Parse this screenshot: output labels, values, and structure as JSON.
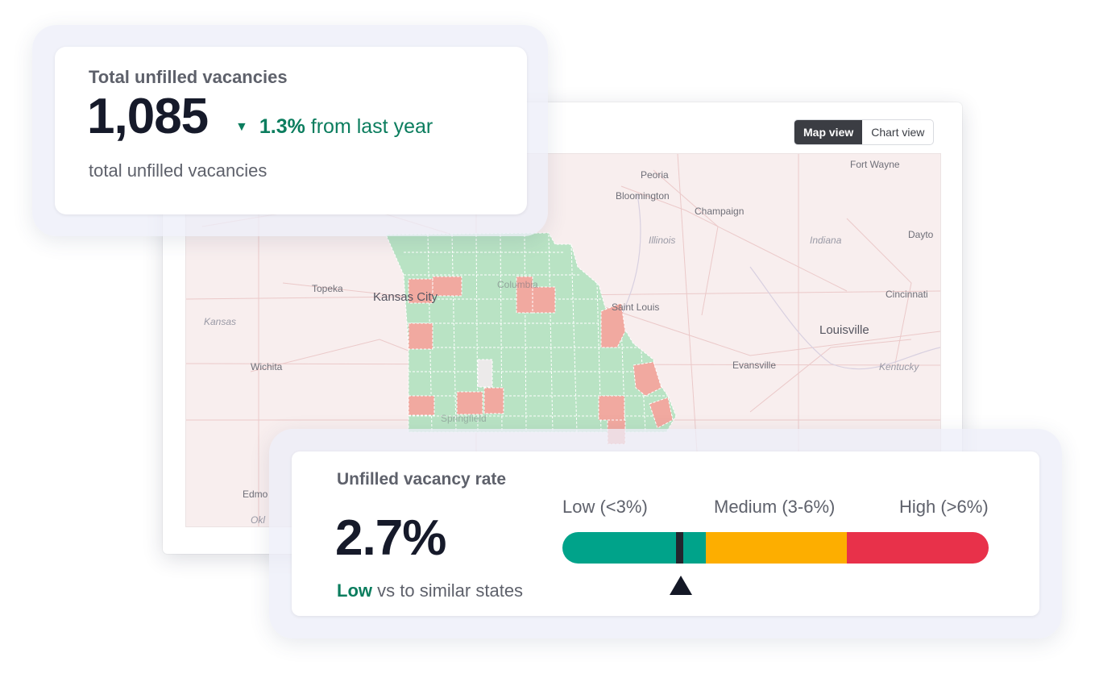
{
  "map_view": {
    "toggle": {
      "map_label": "Map view",
      "chart_label": "Chart view",
      "active": "Map view"
    },
    "places": {
      "peoria": "Peoria",
      "fort_wayne": "Fort Wayne",
      "bloomington": "Bloomington",
      "champaign": "Champaign",
      "illinois": "Illinois",
      "indiana": "Indiana",
      "dayton": "Dayto",
      "topeka": "Topeka",
      "kansas_city": "Kansas City",
      "columbia": "Columbia",
      "st_louis": "Saint Louis",
      "cincinnati": "Cincinnati",
      "kansas": "Kansas",
      "louisville": "Louisville",
      "wichita": "Wichita",
      "evansville": "Evansville",
      "kentucky": "Kentucky",
      "edmond": "Edmo",
      "oklahoma": "Okl",
      "springfield": "Springfield"
    },
    "colors": {
      "low_county": "#b9e3c4",
      "high_county": "#f1a9a0",
      "no_data_county": "#eceaea"
    }
  },
  "total_card": {
    "title": "Total unfilled vacancies",
    "value": "1,085",
    "change_arrow": "▼",
    "change_pct": "1.3%",
    "change_text": "from last year",
    "subtitle": "total unfilled vacancies"
  },
  "rate_card": {
    "title": "Unfilled vacancy rate",
    "value": "2.7%",
    "level_word": "Low",
    "comparison_text": "vs to similar states",
    "bands": [
      {
        "label": "Low (<3%)",
        "color": "#00a38a"
      },
      {
        "label": "Medium (3-6%)",
        "color": "#fdae00"
      },
      {
        "label": "High (>6%)",
        "color": "#e8314a"
      }
    ],
    "gauge_value_percent": 2.7
  }
}
